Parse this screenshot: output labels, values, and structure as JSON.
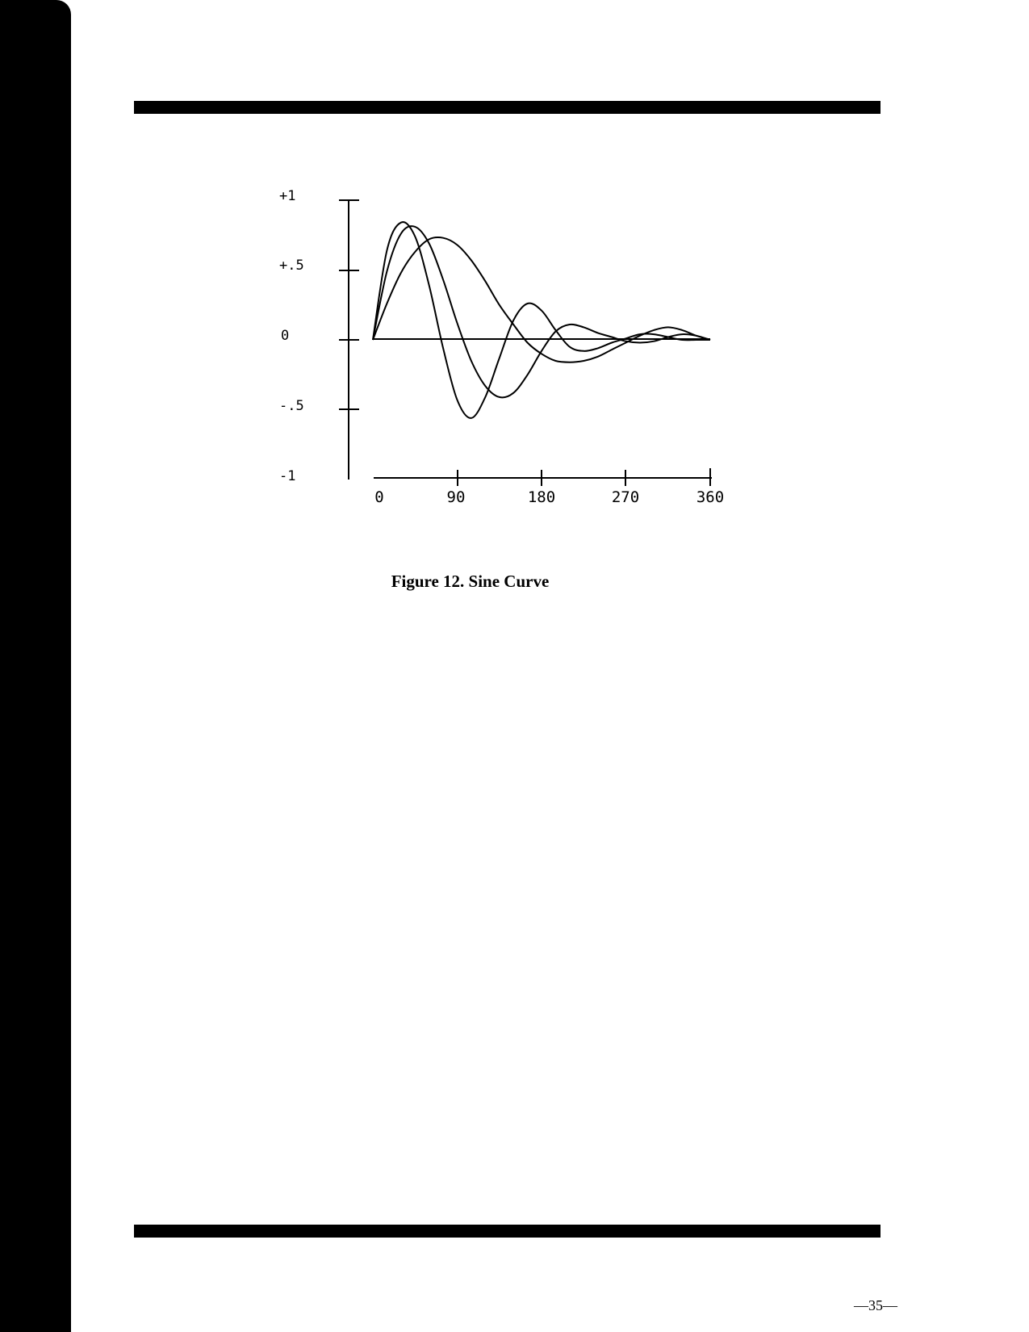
{
  "caption": "Figure 12.  Sine Curve",
  "page_number": "—35—",
  "chart_data": {
    "type": "line",
    "title": "",
    "xlabel": "",
    "ylabel": "",
    "xlim": [
      0,
      360
    ],
    "ylim": [
      -1,
      1
    ],
    "x_ticks": [
      0,
      90,
      180,
      270,
      360
    ],
    "x_tick_labels": [
      "0",
      "90",
      "180",
      "270",
      "360"
    ],
    "y_ticks": [
      1,
      0.5,
      0,
      -0.5,
      -1
    ],
    "y_tick_labels": [
      "+1",
      "+.5",
      "0",
      "-.5",
      "-1"
    ],
    "grid": false,
    "series": [
      {
        "x": [
          0,
          15,
          30,
          45,
          60,
          75,
          90,
          105,
          120,
          135,
          150,
          165,
          180,
          195,
          210,
          225,
          240,
          255,
          270,
          285,
          300,
          315,
          330,
          345,
          360
        ],
        "values": [
          0,
          0.64,
          0.84,
          0.74,
          0.39,
          -0.06,
          -0.43,
          -0.56,
          -0.41,
          -0.13,
          0.14,
          0.26,
          0.21,
          0.07,
          -0.05,
          -0.08,
          -0.06,
          -0.02,
          0.01,
          0.04,
          0.04,
          0.02,
          0,
          0,
          0
        ]
      },
      {
        "x": [
          0,
          15,
          30,
          45,
          60,
          75,
          90,
          105,
          120,
          135,
          150,
          165,
          180,
          195,
          210,
          225,
          240,
          255,
          270,
          285,
          300,
          315,
          330,
          345,
          360
        ],
        "values": [
          0,
          0.49,
          0.76,
          0.81,
          0.69,
          0.43,
          0.12,
          -0.15,
          -0.33,
          -0.41,
          -0.38,
          -0.25,
          -0.08,
          0.06,
          0.11,
          0.09,
          0.05,
          0.02,
          -0.01,
          -0.02,
          -0.01,
          0.02,
          0.04,
          0.03,
          0
        ]
      },
      {
        "x": [
          0,
          15,
          30,
          45,
          60,
          75,
          90,
          105,
          120,
          135,
          150,
          165,
          180,
          195,
          210,
          225,
          240,
          255,
          270,
          285,
          300,
          315,
          330,
          345,
          360
        ],
        "values": [
          0,
          0.26,
          0.48,
          0.63,
          0.72,
          0.73,
          0.68,
          0.57,
          0.42,
          0.25,
          0.11,
          -0.02,
          -0.1,
          -0.15,
          -0.16,
          -0.15,
          -0.12,
          -0.07,
          -0.02,
          0.03,
          0.07,
          0.09,
          0.07,
          0.03,
          0
        ]
      }
    ]
  }
}
